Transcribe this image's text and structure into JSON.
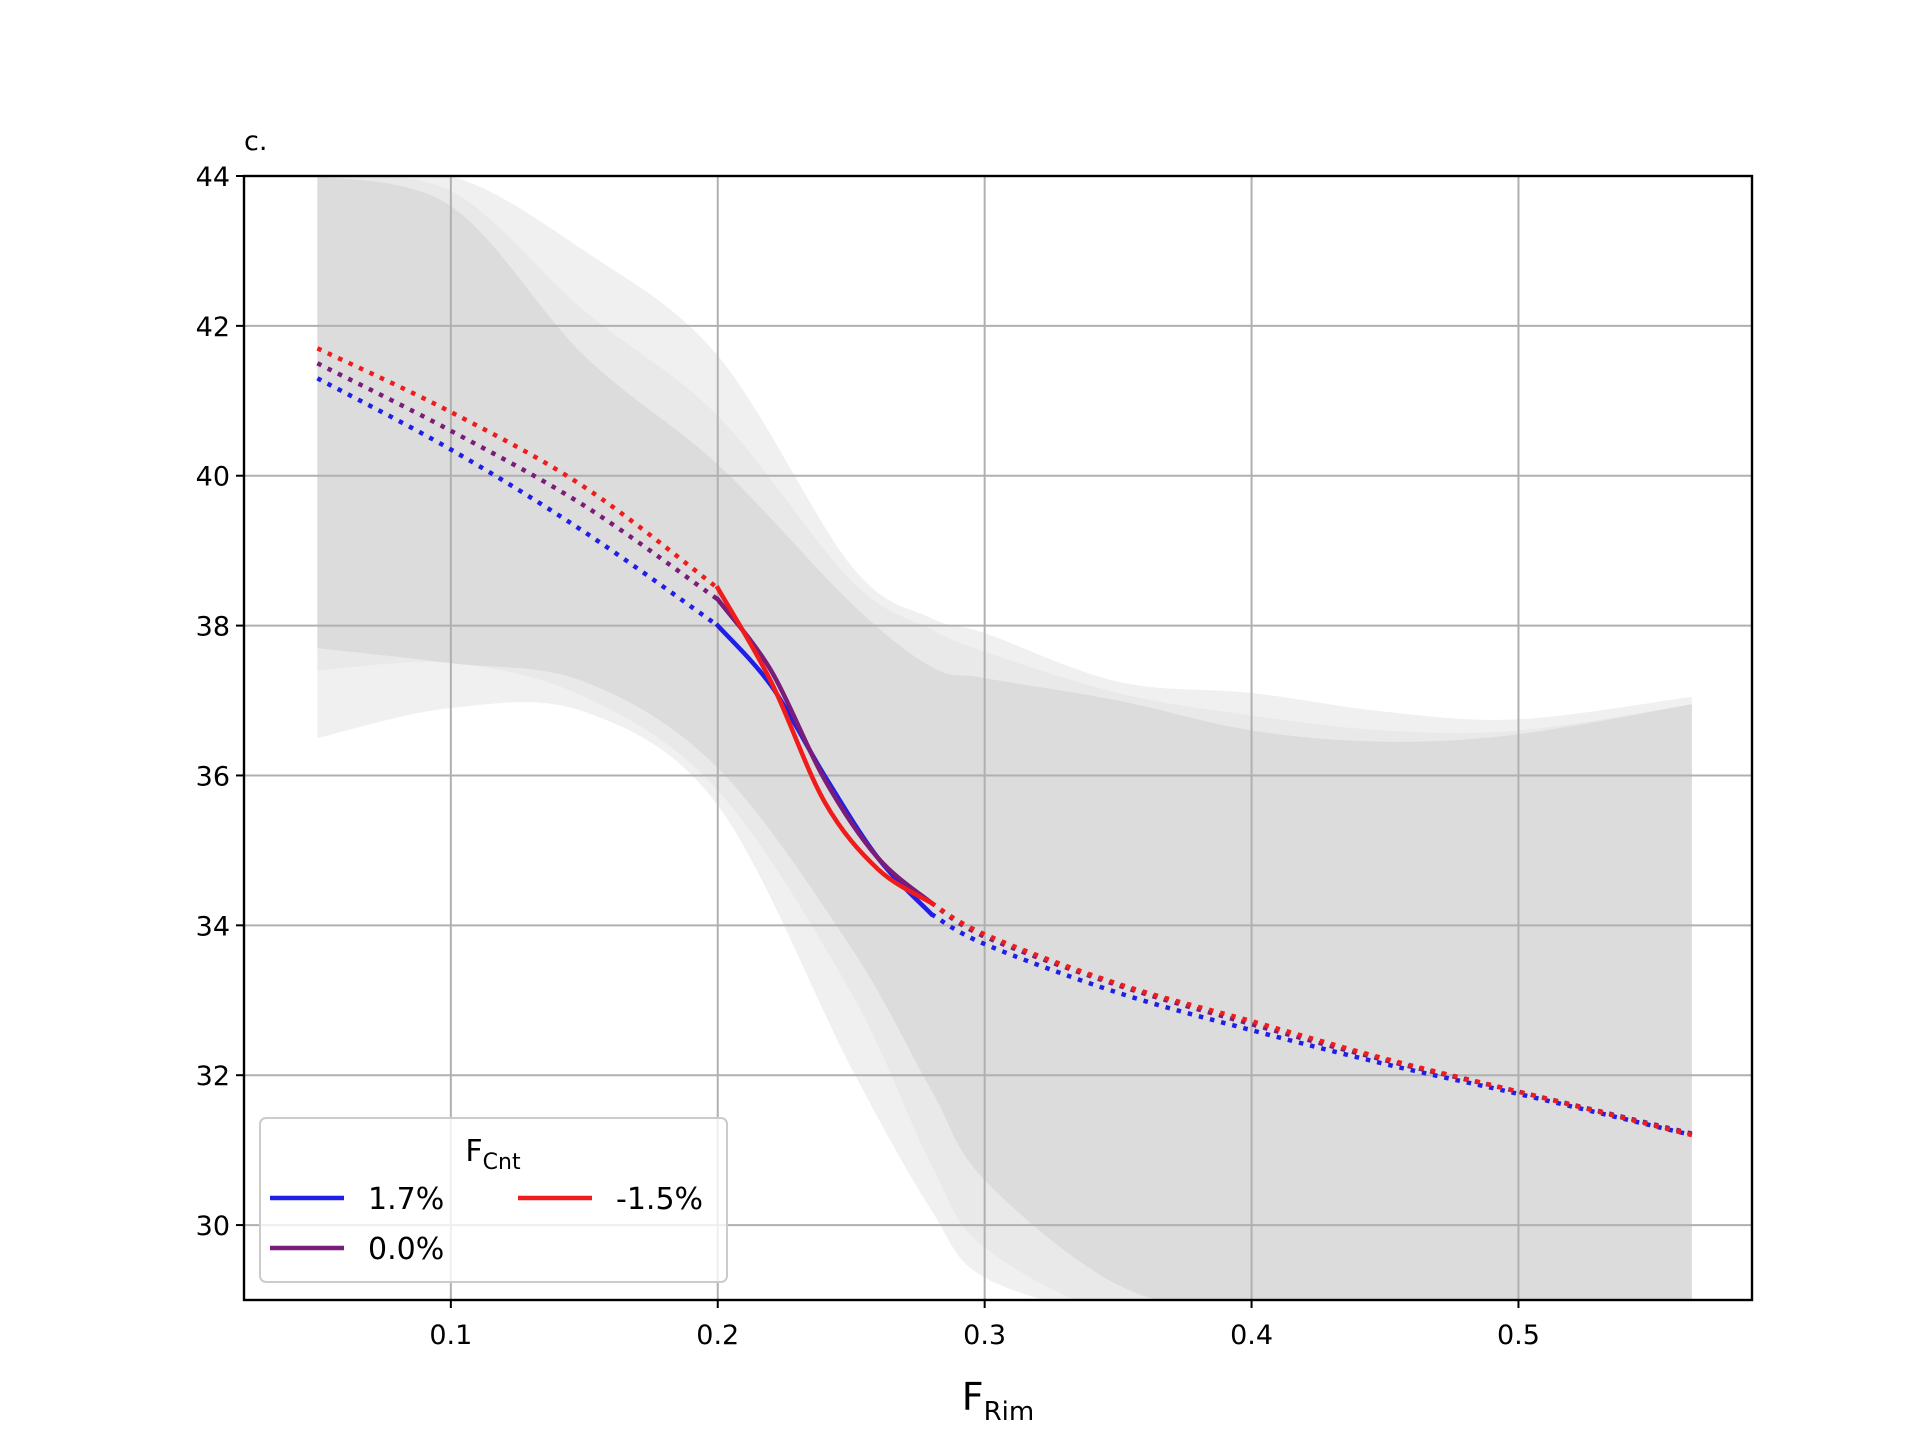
{
  "chart_data": {
    "type": "line",
    "panel_label": "c.",
    "xlabel": {
      "main": "F",
      "sub": "Rim"
    },
    "ylabel": "",
    "xlim": [
      0.0225,
      0.5875
    ],
    "ylim": [
      29.0,
      44.0
    ],
    "xticks": [
      0.1,
      0.2,
      0.3,
      0.4,
      0.5
    ],
    "xtick_labels": [
      "0.1",
      "0.2",
      "0.3",
      "0.4",
      "0.5"
    ],
    "yticks": [
      30,
      32,
      34,
      36,
      38,
      40,
      42,
      44
    ],
    "ytick_labels": [
      "30",
      "32",
      "34",
      "36",
      "38",
      "40",
      "42",
      "44"
    ],
    "grid": true,
    "legend": {
      "title": {
        "main": "F",
        "sub": "Cnt"
      },
      "placement": "lower-left",
      "ncol": 2
    },
    "series": [
      {
        "name": "1.7%",
        "color": "#1f1fe8",
        "dotted_left": {
          "x": [
            0.05,
            0.1,
            0.15,
            0.2
          ],
          "y": [
            41.3,
            40.35,
            39.25,
            38.0
          ]
        },
        "solid": {
          "x": [
            0.2,
            0.22,
            0.24,
            0.26,
            0.28
          ],
          "y": [
            38.0,
            37.2,
            36.0,
            34.9,
            34.15
          ]
        },
        "dotted_right": {
          "x": [
            0.28,
            0.3,
            0.35,
            0.4,
            0.45,
            0.5,
            0.565
          ],
          "y": [
            34.15,
            33.75,
            33.1,
            32.6,
            32.15,
            31.75,
            31.2
          ]
        }
      },
      {
        "name": "0.0%",
        "color": "#7a1c7a",
        "dotted_left": {
          "x": [
            0.05,
            0.1,
            0.15,
            0.2
          ],
          "y": [
            41.5,
            40.6,
            39.6,
            38.35
          ]
        },
        "solid": {
          "x": [
            0.2,
            0.22,
            0.24,
            0.26,
            0.28
          ],
          "y": [
            38.35,
            37.4,
            35.95,
            34.9,
            34.3
          ]
        },
        "dotted_right": {
          "x": [
            0.28,
            0.3,
            0.35,
            0.4,
            0.45,
            0.5,
            0.565
          ],
          "y": [
            34.3,
            33.85,
            33.2,
            32.68,
            32.2,
            31.78,
            31.22
          ]
        }
      },
      {
        "name": "-1.5%",
        "color": "#f01c1c",
        "dotted_left": {
          "x": [
            0.05,
            0.1,
            0.15,
            0.2
          ],
          "y": [
            41.7,
            40.85,
            39.85,
            38.5
          ]
        },
        "solid": {
          "x": [
            0.2,
            0.22,
            0.24,
            0.26,
            0.28
          ],
          "y": [
            38.5,
            37.25,
            35.65,
            34.75,
            34.3
          ]
        },
        "dotted_right": {
          "x": [
            0.28,
            0.3,
            0.35,
            0.4,
            0.45,
            0.5,
            0.565
          ],
          "y": [
            34.3,
            33.88,
            33.22,
            32.72,
            32.22,
            31.78,
            31.2
          ]
        }
      }
    ],
    "confidence_bands": [
      {
        "series": "1.7%",
        "color": "#f0f0f0",
        "x": [
          0.05,
          0.1,
          0.15,
          0.2,
          0.25,
          0.28,
          0.3,
          0.35,
          0.4,
          0.45,
          0.5,
          0.565
        ],
        "upper": [
          44.0,
          44.0,
          43.0,
          41.6,
          38.8,
          38.1,
          37.9,
          37.25,
          37.1,
          36.85,
          36.75,
          37.05
        ],
        "lower": [
          36.5,
          36.9,
          36.85,
          35.6,
          32.1,
          30.2,
          29.3,
          28.8,
          28.8,
          28.8,
          28.8,
          28.8
        ]
      },
      {
        "series": "0.0%",
        "color": "#e9e9e9",
        "x": [
          0.05,
          0.1,
          0.15,
          0.2,
          0.25,
          0.28,
          0.3,
          0.35,
          0.4,
          0.45,
          0.5,
          0.565
        ],
        "upper": [
          44.0,
          43.8,
          42.2,
          40.8,
          38.6,
          37.95,
          37.65,
          37.1,
          36.8,
          36.6,
          36.6,
          36.95
        ],
        "lower": [
          37.4,
          37.5,
          37.05,
          35.8,
          33.1,
          30.8,
          29.7,
          28.8,
          28.8,
          28.8,
          28.8,
          28.8
        ]
      },
      {
        "series": "-1.5%",
        "color": "#dcdcdc",
        "x": [
          0.05,
          0.1,
          0.15,
          0.2,
          0.25,
          0.28,
          0.3,
          0.35,
          0.4,
          0.45,
          0.5,
          0.565
        ],
        "upper": [
          44.0,
          43.6,
          41.6,
          40.15,
          38.3,
          37.45,
          37.3,
          37.0,
          36.6,
          36.45,
          36.55,
          36.95
        ],
        "lower": [
          37.7,
          37.5,
          37.25,
          36.1,
          33.7,
          31.8,
          30.6,
          29.2,
          28.8,
          28.8,
          28.8,
          28.8
        ]
      }
    ]
  }
}
